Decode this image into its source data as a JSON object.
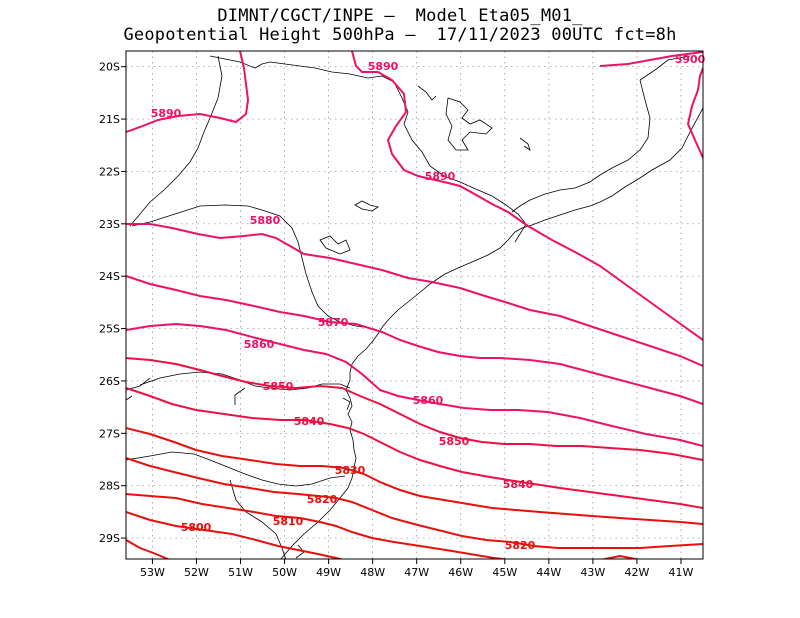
{
  "header": {
    "line1": "DIMNT/CGCT/INPE –  Model Eta05_M01_",
    "line2": "Geopotential Height 500hPa –  17/11/2023 00UTC fct=8h"
  },
  "map": {
    "lon_ticks": [
      "53W",
      "52W",
      "51W",
      "50W",
      "49W",
      "48W",
      "47W",
      "46W",
      "45W",
      "44W",
      "43W",
      "42W",
      "41W"
    ],
    "lat_ticks": [
      "20S",
      "21S",
      "22S",
      "23S",
      "24S",
      "25S",
      "26S",
      "27S",
      "28S",
      "29S"
    ],
    "colors": {
      "high": "#ee1166",
      "mid": "#ee1144",
      "low": "#e8100c",
      "coast": "#000000",
      "grid": "#888888"
    }
  },
  "chart_data": {
    "type": "contour",
    "variable": "Geopotential Height 500hPa",
    "x_range_lon": [
      -53.6,
      -40.5
    ],
    "y_range_lat": [
      -29.4,
      -19.7
    ],
    "grid": true,
    "contour_labels": [
      "5890",
      "5890",
      "5890",
      "5900",
      "5880",
      "5870",
      "5860",
      "5850",
      "5860",
      "5840",
      "5850",
      "5830",
      "5840",
      "5820",
      "5810",
      "5800",
      "5820"
    ],
    "contours": [
      {
        "value": 5900,
        "color_key": "high"
      },
      {
        "value": 5890,
        "color_key": "high"
      },
      {
        "value": 5880,
        "color_key": "high"
      },
      {
        "value": 5870,
        "color_key": "high"
      },
      {
        "value": 5860,
        "color_key": "high"
      },
      {
        "value": 5850,
        "color_key": "mid"
      },
      {
        "value": 5840,
        "color_key": "mid"
      },
      {
        "value": 5830,
        "color_key": "low"
      },
      {
        "value": 5820,
        "color_key": "low"
      },
      {
        "value": 5810,
        "color_key": "low"
      },
      {
        "value": 5800,
        "color_key": "low"
      }
    ]
  }
}
